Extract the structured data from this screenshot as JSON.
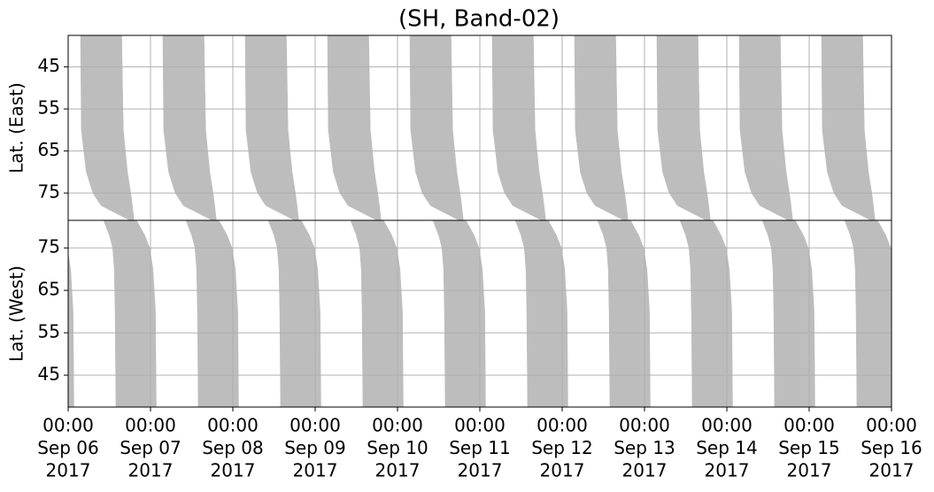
{
  "chart_data": [
    {
      "type": "band",
      "title": "(SH, Band-02)",
      "ylabel": "Lat. (East)",
      "color": "#bdbdbd",
      "grid": true,
      "xlim": [
        0,
        10
      ],
      "ylim": [
        81.5,
        37.5
      ],
      "yticks": [
        45,
        55,
        65,
        75
      ],
      "lat": [
        37.5,
        60,
        70,
        75,
        78,
        81.5
      ],
      "bands": [
        {
          "left": [
            0.15,
            0.16,
            0.22,
            0.3,
            0.4,
            0.75
          ],
          "right": [
            0.65,
            0.67,
            0.72,
            0.76,
            0.78,
            0.8
          ]
        },
        {
          "left": [
            1.15,
            1.16,
            1.22,
            1.3,
            1.4,
            1.75
          ],
          "right": [
            1.65,
            1.67,
            1.72,
            1.76,
            1.78,
            1.8
          ]
        },
        {
          "left": [
            2.15,
            2.16,
            2.22,
            2.3,
            2.4,
            2.75
          ],
          "right": [
            2.65,
            2.67,
            2.72,
            2.76,
            2.78,
            2.8
          ]
        },
        {
          "left": [
            3.15,
            3.16,
            3.22,
            3.3,
            3.4,
            3.75
          ],
          "right": [
            3.65,
            3.67,
            3.72,
            3.76,
            3.78,
            3.8
          ]
        },
        {
          "left": [
            4.15,
            4.16,
            4.22,
            4.3,
            4.4,
            4.75
          ],
          "right": [
            4.65,
            4.67,
            4.72,
            4.76,
            4.78,
            4.8
          ]
        },
        {
          "left": [
            5.15,
            5.16,
            5.22,
            5.3,
            5.4,
            5.75
          ],
          "right": [
            5.65,
            5.67,
            5.72,
            5.76,
            5.78,
            5.8
          ]
        },
        {
          "left": [
            6.15,
            6.16,
            6.22,
            6.3,
            6.4,
            6.75
          ],
          "right": [
            6.65,
            6.67,
            6.72,
            6.76,
            6.78,
            6.8
          ]
        },
        {
          "left": [
            7.15,
            7.16,
            7.22,
            7.3,
            7.4,
            7.75
          ],
          "right": [
            7.65,
            7.67,
            7.72,
            7.76,
            7.78,
            7.8
          ]
        },
        {
          "left": [
            8.15,
            8.16,
            8.22,
            8.3,
            8.4,
            8.75
          ],
          "right": [
            8.65,
            8.67,
            8.72,
            8.76,
            8.78,
            8.8
          ]
        },
        {
          "left": [
            9.15,
            9.16,
            9.22,
            9.3,
            9.4,
            9.75
          ],
          "right": [
            9.65,
            9.67,
            9.72,
            9.76,
            9.78,
            9.8
          ]
        }
      ]
    },
    {
      "type": "band",
      "ylabel": "Lat. (West)",
      "color": "#bdbdbd",
      "grid": true,
      "xlim": [
        0,
        10
      ],
      "ylim": [
        37.5,
        81.5
      ],
      "yticks": [
        45,
        55,
        65,
        75
      ],
      "xticks": [
        {
          "value": 0,
          "label": [
            "00:00",
            "Sep 06",
            "2017"
          ]
        },
        {
          "value": 1,
          "label": [
            "00:00",
            "Sep 07",
            "2017"
          ]
        },
        {
          "value": 2,
          "label": [
            "00:00",
            "Sep 08",
            "2017"
          ]
        },
        {
          "value": 3,
          "label": [
            "00:00",
            "Sep 09",
            "2017"
          ]
        },
        {
          "value": 4,
          "label": [
            "00:00",
            "Sep 10",
            "2017"
          ]
        },
        {
          "value": 5,
          "label": [
            "00:00",
            "Sep 11",
            "2017"
          ]
        },
        {
          "value": 6,
          "label": [
            "00:00",
            "Sep 12",
            "2017"
          ]
        },
        {
          "value": 7,
          "label": [
            "00:00",
            "Sep 13",
            "2017"
          ]
        },
        {
          "value": 8,
          "label": [
            "00:00",
            "Sep 14",
            "2017"
          ]
        },
        {
          "value": 9,
          "label": [
            "00:00",
            "Sep 15",
            "2017"
          ]
        },
        {
          "value": 10,
          "label": [
            "00:00",
            "Sep 16",
            "2017"
          ]
        }
      ],
      "lat": [
        81.5,
        78,
        75,
        70,
        60,
        37.5
      ],
      "bands": [
        {
          "left": [
            -0.57,
            -0.5,
            -0.46,
            -0.44,
            -0.43,
            -0.42
          ],
          "right": [
            -0.17,
            -0.07,
            -0.01,
            0.03,
            0.06,
            0.07
          ]
        },
        {
          "left": [
            0.43,
            0.5,
            0.54,
            0.56,
            0.57,
            0.58
          ],
          "right": [
            0.83,
            0.93,
            0.99,
            1.03,
            1.06,
            1.07
          ]
        },
        {
          "left": [
            1.43,
            1.5,
            1.54,
            1.56,
            1.57,
            1.58
          ],
          "right": [
            1.83,
            1.93,
            1.99,
            2.03,
            2.06,
            2.07
          ]
        },
        {
          "left": [
            2.43,
            2.5,
            2.54,
            2.56,
            2.57,
            2.58
          ],
          "right": [
            2.83,
            2.93,
            2.99,
            3.03,
            3.06,
            3.07
          ]
        },
        {
          "left": [
            3.43,
            3.5,
            3.54,
            3.56,
            3.57,
            3.58
          ],
          "right": [
            3.83,
            3.93,
            3.99,
            4.03,
            4.06,
            4.07
          ]
        },
        {
          "left": [
            4.43,
            4.5,
            4.54,
            4.56,
            4.57,
            4.58
          ],
          "right": [
            4.83,
            4.93,
            4.99,
            5.03,
            5.06,
            5.07
          ]
        },
        {
          "left": [
            5.43,
            5.5,
            5.54,
            5.56,
            5.57,
            5.58
          ],
          "right": [
            5.83,
            5.93,
            5.99,
            6.03,
            6.06,
            6.07
          ]
        },
        {
          "left": [
            6.43,
            6.5,
            6.54,
            6.56,
            6.57,
            6.58
          ],
          "right": [
            6.83,
            6.93,
            6.99,
            7.03,
            7.06,
            7.07
          ]
        },
        {
          "left": [
            7.43,
            7.5,
            7.54,
            7.56,
            7.57,
            7.58
          ],
          "right": [
            7.83,
            7.93,
            7.99,
            8.03,
            8.06,
            8.07
          ]
        },
        {
          "left": [
            8.43,
            8.5,
            8.54,
            8.56,
            8.57,
            8.58
          ],
          "right": [
            8.83,
            8.93,
            8.99,
            9.03,
            9.06,
            9.07
          ]
        },
        {
          "left": [
            9.43,
            9.5,
            9.54,
            9.56,
            9.57,
            9.58
          ],
          "right": [
            9.83,
            9.93,
            9.99,
            10.03,
            10.06,
            10.07
          ]
        }
      ]
    }
  ]
}
